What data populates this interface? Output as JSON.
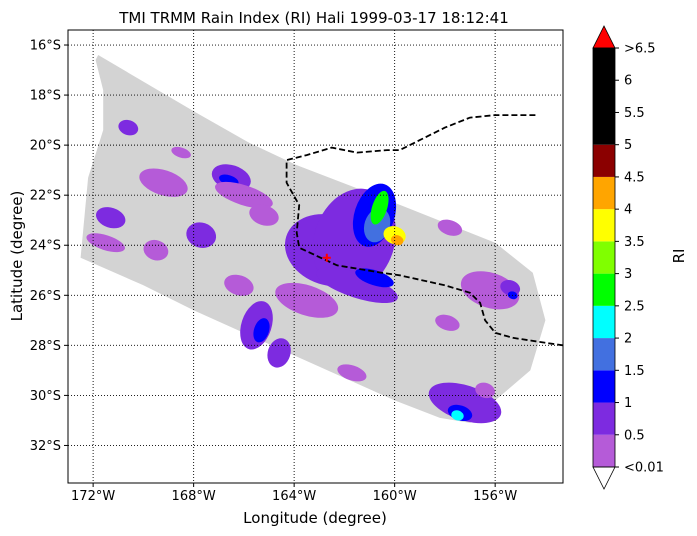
{
  "chart_data": {
    "type": "heatmap",
    "title": "TMI TRMM Rain Index (RI) Hali 1999-03-17 18:12:41",
    "xlabel": "Longitude (degree)",
    "ylabel": "Latitude (degree)",
    "xlim": [
      -173,
      -153.3
    ],
    "ylim": [
      -33.5,
      -15.4
    ],
    "x_ticks": [
      {
        "value": -172,
        "label": "172°W"
      },
      {
        "value": -168,
        "label": "168°W"
      },
      {
        "value": -164,
        "label": "164°W"
      },
      {
        "value": -160,
        "label": "160°W"
      },
      {
        "value": -156,
        "label": "156°W"
      }
    ],
    "y_ticks": [
      {
        "value": -16,
        "label": "16°S"
      },
      {
        "value": -18,
        "label": "18°S"
      },
      {
        "value": -20,
        "label": "20°S"
      },
      {
        "value": -22,
        "label": "22°S"
      },
      {
        "value": -24,
        "label": "24°S"
      },
      {
        "value": -26,
        "label": "26°S"
      },
      {
        "value": -28,
        "label": "28°S"
      },
      {
        "value": -30,
        "label": "30°S"
      },
      {
        "value": -32,
        "label": "32°S"
      }
    ],
    "grid": true,
    "swath_color": "#d3d3d3",
    "swath_polygon_lonlat": [
      [
        -171.8,
        -16.4
      ],
      [
        -167.9,
        -18.7
      ],
      [
        -165.8,
        -19.9
      ],
      [
        -163.9,
        -20.8
      ],
      [
        -160.0,
        -22.3
      ],
      [
        -156.0,
        -23.9
      ],
      [
        -154.5,
        -25.1
      ],
      [
        -154.0,
        -27.0
      ],
      [
        -154.6,
        -29.0
      ],
      [
        -156.0,
        -30.2
      ],
      [
        -156.6,
        -30.9
      ],
      [
        -157.0,
        -31.1
      ],
      [
        -158.2,
        -30.9
      ],
      [
        -160.0,
        -30.2
      ],
      [
        -164.0,
        -28.4
      ],
      [
        -168.0,
        -26.6
      ],
      [
        -170.0,
        -25.6
      ],
      [
        -172.5,
        -24.5
      ],
      [
        -172.2,
        -21.3
      ],
      [
        -171.6,
        -19.4
      ],
      [
        -171.6,
        -17.8
      ],
      [
        -171.9,
        -16.6
      ]
    ],
    "track": {
      "style": "dashed",
      "color": "#000000",
      "points": [
        [
          -154.4,
          -18.8
        ],
        [
          -156.0,
          -18.8
        ],
        [
          -157.0,
          -18.9
        ],
        [
          -158.0,
          -19.3
        ],
        [
          -159.0,
          -19.8
        ],
        [
          -159.8,
          -20.2
        ],
        [
          -160.3,
          -20.2
        ],
        [
          -161.5,
          -20.3
        ],
        [
          -162.5,
          -20.1
        ],
        [
          -163.5,
          -20.4
        ],
        [
          -164.3,
          -20.6
        ],
        [
          -164.3,
          -21.5
        ],
        [
          -163.8,
          -22.4
        ],
        [
          -163.9,
          -23.5
        ],
        [
          -163.8,
          -24.1
        ],
        [
          -162.3,
          -24.8
        ],
        [
          -160.5,
          -25.1
        ],
        [
          -159.8,
          -25.2
        ],
        [
          -158.0,
          -25.6
        ],
        [
          -157.0,
          -25.9
        ],
        [
          -156.6,
          -26.3
        ],
        [
          -156.4,
          -27.0
        ],
        [
          -156.0,
          -27.5
        ],
        [
          -155.3,
          -27.7
        ],
        [
          -154.0,
          -27.9
        ],
        [
          -153.3,
          -28.0
        ]
      ]
    },
    "center_marker": {
      "lon": -162.7,
      "lat": -24.5,
      "color": "#ff0000"
    },
    "rain_cells": [
      {
        "lon": -162.6,
        "lat": -24.2,
        "rx": 1.8,
        "ry": 1.4,
        "level": 1
      },
      {
        "lon": -161.6,
        "lat": -23.8,
        "rx": 1.6,
        "ry": 2.1,
        "level": 1
      },
      {
        "lon": -160.8,
        "lat": -22.8,
        "rx": 0.8,
        "ry": 1.3,
        "level": 2
      },
      {
        "lon": -160.7,
        "lat": -23.2,
        "rx": 0.5,
        "ry": 0.7,
        "level": 3
      },
      {
        "lon": -160.6,
        "lat": -22.5,
        "rx": 0.3,
        "ry": 0.7,
        "level": 5
      },
      {
        "lon": -160.0,
        "lat": -23.6,
        "rx": 0.45,
        "ry": 0.35,
        "level": 7
      },
      {
        "lon": -159.9,
        "lat": -23.8,
        "rx": 0.25,
        "ry": 0.2,
        "level": 8
      },
      {
        "lon": -161.5,
        "lat": -25.6,
        "rx": 1.7,
        "ry": 0.5,
        "level": 1
      },
      {
        "lon": -160.8,
        "lat": -25.3,
        "rx": 0.8,
        "ry": 0.3,
        "level": 2
      },
      {
        "lon": -163.5,
        "lat": -26.2,
        "rx": 1.3,
        "ry": 0.6,
        "level": 0
      },
      {
        "lon": -165.5,
        "lat": -27.2,
        "rx": 0.6,
        "ry": 1.0,
        "level": 1
      },
      {
        "lon": -165.3,
        "lat": -27.4,
        "rx": 0.3,
        "ry": 0.5,
        "level": 2
      },
      {
        "lon": -164.6,
        "lat": -28.3,
        "rx": 0.45,
        "ry": 0.6,
        "level": 1
      },
      {
        "lon": -166.2,
        "lat": -25.6,
        "rx": 0.6,
        "ry": 0.4,
        "level": 0
      },
      {
        "lon": -166.5,
        "lat": -21.3,
        "rx": 0.8,
        "ry": 0.5,
        "level": 1
      },
      {
        "lon": -166.6,
        "lat": -21.4,
        "rx": 0.4,
        "ry": 0.2,
        "level": 2
      },
      {
        "lon": -166.0,
        "lat": -22.0,
        "rx": 1.2,
        "ry": 0.4,
        "level": 0
      },
      {
        "lon": -169.2,
        "lat": -21.5,
        "rx": 1.0,
        "ry": 0.5,
        "level": 0
      },
      {
        "lon": -171.3,
        "lat": -22.9,
        "rx": 0.6,
        "ry": 0.4,
        "level": 1
      },
      {
        "lon": -171.5,
        "lat": -23.9,
        "rx": 0.8,
        "ry": 0.3,
        "level": 0
      },
      {
        "lon": -167.7,
        "lat": -23.6,
        "rx": 0.6,
        "ry": 0.5,
        "level": 1
      },
      {
        "lon": -169.5,
        "lat": -24.2,
        "rx": 0.5,
        "ry": 0.4,
        "level": 0
      },
      {
        "lon": -165.2,
        "lat": -22.8,
        "rx": 0.6,
        "ry": 0.4,
        "level": 0
      },
      {
        "lon": -170.6,
        "lat": -19.3,
        "rx": 0.4,
        "ry": 0.3,
        "level": 1
      },
      {
        "lon": -168.5,
        "lat": -20.3,
        "rx": 0.4,
        "ry": 0.2,
        "level": 0
      },
      {
        "lon": -157.8,
        "lat": -23.3,
        "rx": 0.5,
        "ry": 0.3,
        "level": 0
      },
      {
        "lon": -156.2,
        "lat": -25.8,
        "rx": 1.2,
        "ry": 0.7,
        "level": 0
      },
      {
        "lon": -155.4,
        "lat": -25.7,
        "rx": 0.4,
        "ry": 0.3,
        "level": 1
      },
      {
        "lon": -155.3,
        "lat": -26.0,
        "rx": 0.2,
        "ry": 0.15,
        "level": 2
      },
      {
        "lon": -157.9,
        "lat": -27.1,
        "rx": 0.5,
        "ry": 0.3,
        "level": 0
      },
      {
        "lon": -161.7,
        "lat": -29.1,
        "rx": 0.6,
        "ry": 0.3,
        "level": 0
      },
      {
        "lon": -157.2,
        "lat": -30.3,
        "rx": 1.5,
        "ry": 0.7,
        "level": 1
      },
      {
        "lon": -157.4,
        "lat": -30.7,
        "rx": 0.5,
        "ry": 0.3,
        "level": 2
      },
      {
        "lon": -157.5,
        "lat": -30.8,
        "rx": 0.25,
        "ry": 0.2,
        "level": 4
      },
      {
        "lon": -156.4,
        "lat": -29.8,
        "rx": 0.4,
        "ry": 0.3,
        "level": 0
      }
    ],
    "colorbar": {
      "label": "RI",
      "levels": [
        {
          "label": "<0.01",
          "color": "#ffffff"
        },
        {
          "label": "0.5",
          "color": "#b55bd8"
        },
        {
          "label": "1",
          "color": "#7d2be0"
        },
        {
          "label": "1.5",
          "color": "#0000ff"
        },
        {
          "label": "2",
          "color": "#4270e0"
        },
        {
          "label": "2.5",
          "color": "#00ffff"
        },
        {
          "label": "3",
          "color": "#00ff00"
        },
        {
          "label": "3.5",
          "color": "#80ff00"
        },
        {
          "label": "4",
          "color": "#ffff00"
        },
        {
          "label": "4.5",
          "color": "#ffa500"
        },
        {
          "label": "5",
          "color": "#8b0000"
        },
        {
          "label": "5.5",
          "color": "#000000"
        },
        {
          "label": "6",
          "color": "#000000"
        },
        {
          "label": ">6.5",
          "color": "#ff0000"
        }
      ],
      "segments": [
        {
          "from": 0.01,
          "to": 0.5,
          "color": "#b55bd8"
        },
        {
          "from": 0.5,
          "to": 1.0,
          "color": "#7d2be0"
        },
        {
          "from": 1.0,
          "to": 1.5,
          "color": "#0000ff"
        },
        {
          "from": 1.5,
          "to": 2.0,
          "color": "#4270e0"
        },
        {
          "from": 2.0,
          "to": 2.5,
          "color": "#00ffff"
        },
        {
          "from": 2.5,
          "to": 3.0,
          "color": "#00ff00"
        },
        {
          "from": 3.0,
          "to": 3.5,
          "color": "#80ff00"
        },
        {
          "from": 3.5,
          "to": 4.0,
          "color": "#ffff00"
        },
        {
          "from": 4.0,
          "to": 4.5,
          "color": "#ffa500"
        },
        {
          "from": 4.5,
          "to": 5.0,
          "color": "#8b0000"
        },
        {
          "from": 5.0,
          "to": 6.5,
          "color": "#000000"
        }
      ],
      "under_color": "#ffffff",
      "over_color": "#ff0000"
    }
  }
}
